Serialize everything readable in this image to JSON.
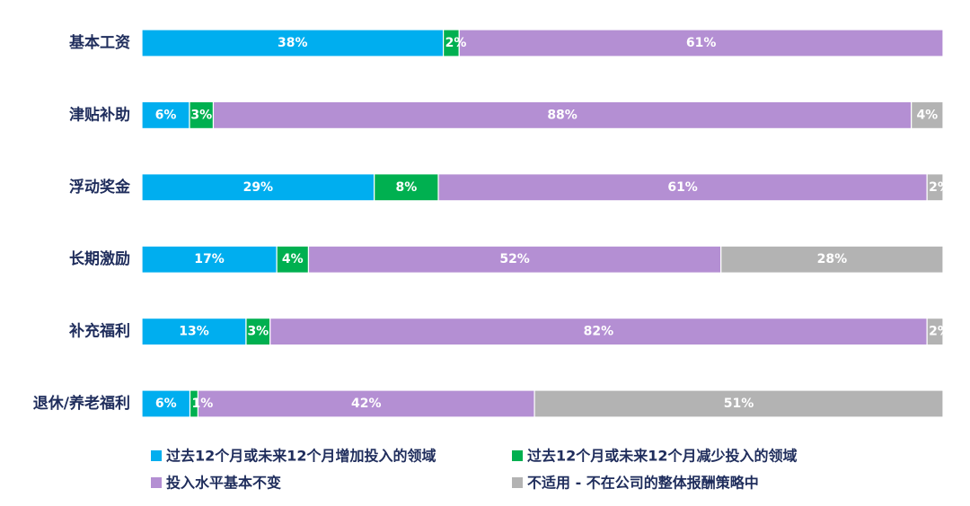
{
  "chart_data": {
    "type": "bar",
    "orientation": "horizontal",
    "stacked": true,
    "categories": [
      "基本工资",
      "津贴补助",
      "浮动奖金",
      "长期激励",
      "补充福利",
      "退休/养老福利"
    ],
    "series": [
      {
        "name": "过去12个月或未来12个月增加投入的领域",
        "color": "#00aeef",
        "values": [
          38,
          6,
          29,
          17,
          13,
          6
        ]
      },
      {
        "name": "过去12个月或未来12个月减少投入的领域",
        "color": "#00b050",
        "values": [
          2,
          3,
          8,
          4,
          3,
          1
        ]
      },
      {
        "name": "投入水平基本不变",
        "color": "#b48fd3",
        "values": [
          61,
          88,
          61,
          52,
          82,
          42
        ]
      },
      {
        "name": "不适用 - 不在公司的整体报酬策略中",
        "color": "#b3b3b3",
        "values": [
          0,
          4,
          2,
          28,
          2,
          51
        ]
      }
    ],
    "value_suffix": "%",
    "legend_position": "bottom",
    "grid": false
  }
}
